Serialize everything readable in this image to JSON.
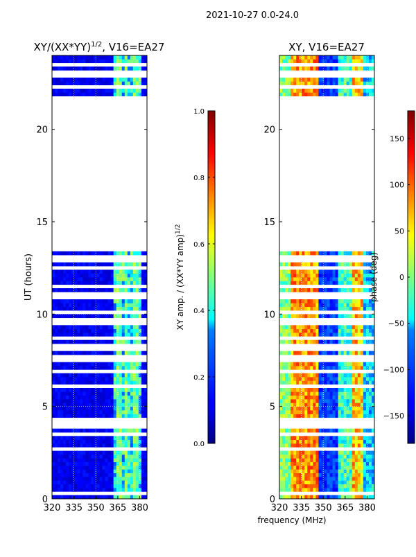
{
  "figure_title": "2021-10-27 0.0-24.0",
  "shared_xlabel": "frequency (MHz)",
  "chart_data": [
    {
      "type": "heatmap",
      "title_main": "XY/(XX*YY)",
      "title_exp": "1/2",
      "title_suffix": ", V16=EA27",
      "xlabel": "",
      "ylabel": "UT (hours)",
      "xlim": [
        320,
        385
      ],
      "ylim": [
        0,
        24
      ],
      "xticks": [
        320,
        335,
        350,
        365,
        380
      ],
      "yticks": [
        0,
        5,
        10,
        15,
        20
      ],
      "grid": true,
      "data_gaps_ut_hours": [
        [
          13.3,
          21.7
        ]
      ],
      "colorbar": {
        "label_main": "XY amp. / (XX*YY amp)",
        "label_exp": "1/2",
        "min": 0.0,
        "max": 1.0,
        "ticks": [
          "0.0",
          "0.2",
          "0.4",
          "0.6",
          "0.8",
          "1.0"
        ],
        "colormap": "jet"
      }
    },
    {
      "type": "heatmap",
      "title": "XY, V16=EA27",
      "xlabel": "frequency (MHz)",
      "ylabel": "",
      "xlim": [
        320,
        385
      ],
      "ylim": [
        0,
        24
      ],
      "xticks": [
        320,
        335,
        350,
        365,
        380
      ],
      "yticks": [
        0,
        5,
        10,
        15,
        20
      ],
      "grid": true,
      "data_gaps_ut_hours": [
        [
          13.3,
          21.7
        ]
      ],
      "colorbar": {
        "label": "phase (deg)",
        "min": -180,
        "max": 180,
        "ticks": [
          "150",
          "100",
          "50",
          "0",
          "−50",
          "−100",
          "−150"
        ],
        "tick_values": [
          150,
          100,
          50,
          0,
          -50,
          -100,
          -150
        ],
        "colormap": "jet"
      }
    }
  ]
}
